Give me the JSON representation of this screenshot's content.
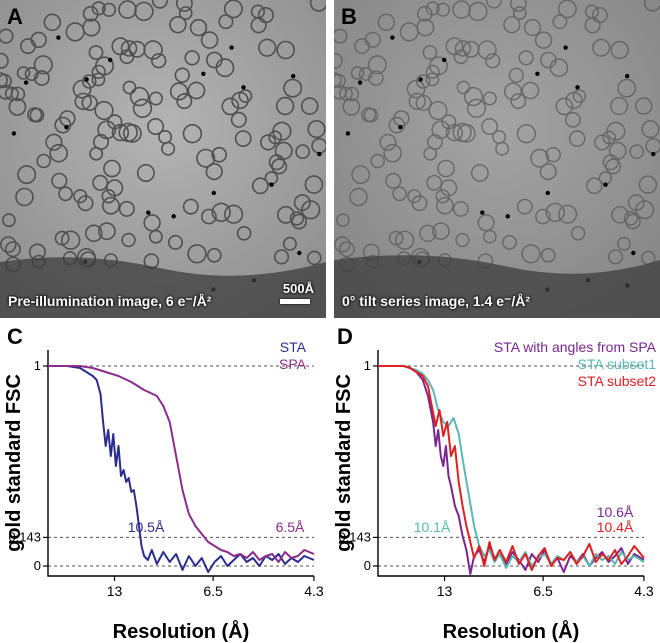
{
  "panels": {
    "A": {
      "letter": "A",
      "caption": "Pre-illumination image, 6 e⁻/Å²",
      "scale_bar": "500Å"
    },
    "B": {
      "letter": "B",
      "caption": "0° tilt series image, 1.4 e⁻/Å²"
    },
    "C": {
      "letter": "C"
    },
    "D": {
      "letter": "D"
    }
  },
  "chart_data": [
    {
      "type": "line",
      "panel": "C",
      "xlabel": "Resolution (Å)",
      "ylabel": "gold standard FSC",
      "x_ticks": [
        "13",
        "6.5",
        "4.3"
      ],
      "y_ticks": [
        "1",
        "0.143",
        "0"
      ],
      "reference_lines": [
        1,
        0.143,
        0
      ],
      "x_unit": "1/Å",
      "xlim": [
        0.025,
        0.2326
      ],
      "ylim": [
        -0.05,
        1.08
      ],
      "series": [
        {
          "name": "STA",
          "color": "#2b2d8e",
          "annotation": "10.5Å",
          "x": [
            0.025,
            0.04,
            0.05,
            0.055,
            0.06,
            0.063,
            0.066,
            0.068,
            0.07,
            0.072,
            0.074,
            0.076,
            0.078,
            0.08,
            0.082,
            0.084,
            0.086,
            0.088,
            0.09,
            0.092,
            0.094,
            0.096,
            0.098,
            0.1,
            0.103,
            0.106,
            0.11,
            0.115,
            0.12,
            0.125,
            0.13,
            0.135,
            0.14,
            0.145,
            0.15,
            0.155,
            0.16,
            0.165,
            0.17,
            0.175,
            0.18,
            0.185,
            0.19,
            0.195,
            0.2,
            0.205,
            0.21,
            0.215,
            0.22,
            0.225,
            0.2326
          ],
          "y": [
            1,
            1,
            0.99,
            0.97,
            0.95,
            0.93,
            0.86,
            0.72,
            0.6,
            0.68,
            0.55,
            0.66,
            0.5,
            0.6,
            0.45,
            0.48,
            0.42,
            0.44,
            0.37,
            0.38,
            0.3,
            0.2,
            0.1,
            0.05,
            0.03,
            0.08,
            0.01,
            0.07,
            0.02,
            0.06,
            -0.02,
            0.05,
            0.0,
            0.04,
            -0.03,
            0.02,
            0.05,
            0.0,
            0.03,
            0.06,
            0.02,
            0.04,
            0.0,
            0.05,
            0.03,
            0.06,
            0.01,
            0.04,
            0.02,
            0.05,
            0.03
          ]
        },
        {
          "name": "SPA",
          "color": "#8b2c8c",
          "annotation": "6.5Å",
          "x": [
            0.025,
            0.05,
            0.06,
            0.07,
            0.08,
            0.09,
            0.1,
            0.11,
            0.115,
            0.12,
            0.125,
            0.13,
            0.135,
            0.14,
            0.145,
            0.15,
            0.155,
            0.16,
            0.165,
            0.17,
            0.175,
            0.18,
            0.185,
            0.19,
            0.195,
            0.2,
            0.205,
            0.21,
            0.215,
            0.22,
            0.225,
            0.2326
          ],
          "y": [
            1,
            1,
            0.99,
            0.97,
            0.95,
            0.92,
            0.88,
            0.85,
            0.8,
            0.72,
            0.55,
            0.38,
            0.26,
            0.2,
            0.16,
            0.12,
            0.1,
            0.08,
            0.07,
            0.05,
            0.06,
            0.04,
            0.07,
            0.03,
            0.05,
            0.06,
            0.02,
            0.07,
            0.04,
            0.05,
            0.08,
            0.06
          ]
        }
      ]
    },
    {
      "type": "line",
      "panel": "D",
      "xlabel": "Resolution (Å)",
      "ylabel": "gold standard FSC",
      "x_ticks": [
        "13",
        "6.5",
        "4.3"
      ],
      "y_ticks": [
        "1",
        "0.143",
        "0"
      ],
      "reference_lines": [
        1,
        0.143,
        0
      ],
      "x_unit": "1/Å",
      "xlim": [
        0.025,
        0.2326
      ],
      "ylim": [
        -0.05,
        1.08
      ],
      "series": [
        {
          "name": "STA with angles from SPA",
          "color": "#7a2590",
          "annotation": "10.6Å",
          "x": [
            0.025,
            0.045,
            0.05,
            0.055,
            0.06,
            0.064,
            0.068,
            0.07,
            0.072,
            0.074,
            0.076,
            0.078,
            0.08,
            0.082,
            0.085,
            0.088,
            0.091,
            0.094,
            0.097,
            0.1,
            0.104,
            0.108,
            0.112,
            0.116,
            0.12,
            0.125,
            0.13,
            0.135,
            0.14,
            0.145,
            0.15,
            0.155,
            0.16,
            0.165,
            0.17,
            0.175,
            0.18,
            0.185,
            0.19,
            0.195,
            0.2,
            0.205,
            0.21,
            0.215,
            0.22,
            0.225,
            0.2326
          ],
          "y": [
            1,
            1,
            0.99,
            0.97,
            0.93,
            0.85,
            0.72,
            0.6,
            0.68,
            0.55,
            0.5,
            0.6,
            0.45,
            0.4,
            0.3,
            0.25,
            0.15,
            0.08,
            -0.04,
            0.05,
            0.08,
            0.02,
            0.1,
            0.04,
            0.06,
            0.01,
            0.07,
            0.03,
            -0.02,
            0.06,
            0.02,
            0.08,
            0.01,
            0.04,
            -0.03,
            0.05,
            0.02,
            0.06,
            0.0,
            0.04,
            0.07,
            0.02,
            0.05,
            0.09,
            0.01,
            0.06,
            0.03
          ]
        },
        {
          "name": "STA subset1",
          "color": "#5ab8b4",
          "annotation": "10.1Å",
          "x": [
            0.025,
            0.045,
            0.05,
            0.055,
            0.06,
            0.064,
            0.068,
            0.072,
            0.076,
            0.08,
            0.084,
            0.088,
            0.092,
            0.096,
            0.1,
            0.104,
            0.108,
            0.112,
            0.116,
            0.12,
            0.125,
            0.13,
            0.135,
            0.14,
            0.145,
            0.15,
            0.155,
            0.16,
            0.165,
            0.17,
            0.175,
            0.18,
            0.185,
            0.19,
            0.195,
            0.2,
            0.205,
            0.21,
            0.215,
            0.22,
            0.225,
            0.2326
          ],
          "y": [
            1,
            1,
            0.99,
            0.98,
            0.96,
            0.93,
            0.88,
            0.78,
            0.72,
            0.7,
            0.74,
            0.66,
            0.5,
            0.35,
            0.2,
            0.1,
            0.05,
            0.08,
            0.02,
            0.06,
            -0.01,
            0.05,
            0.02,
            0.07,
            0.0,
            0.04,
            0.06,
            0.01,
            0.05,
            0.03,
            0.07,
            0.02,
            0.05,
            0.0,
            0.06,
            0.03,
            0.05,
            0.01,
            0.07,
            0.03,
            0.05,
            0.02
          ]
        },
        {
          "name": "STA subset2",
          "color": "#e02020",
          "annotation": "10.4Å",
          "x": [
            0.025,
            0.045,
            0.05,
            0.055,
            0.06,
            0.064,
            0.067,
            0.07,
            0.073,
            0.076,
            0.079,
            0.082,
            0.085,
            0.088,
            0.091,
            0.094,
            0.097,
            0.1,
            0.104,
            0.108,
            0.112,
            0.116,
            0.12,
            0.125,
            0.13,
            0.135,
            0.14,
            0.145,
            0.15,
            0.155,
            0.16,
            0.165,
            0.17,
            0.175,
            0.18,
            0.185,
            0.19,
            0.195,
            0.2,
            0.205,
            0.21,
            0.215,
            0.22,
            0.225,
            0.2326
          ],
          "y": [
            1,
            1,
            0.99,
            0.97,
            0.95,
            0.9,
            0.8,
            0.7,
            0.78,
            0.65,
            0.72,
            0.55,
            0.6,
            0.42,
            0.3,
            0.2,
            0.12,
            0.04,
            0.1,
            0.0,
            0.12,
            0.03,
            0.08,
            0.02,
            0.1,
            0.01,
            0.06,
            -0.02,
            0.05,
            0.09,
            0.0,
            0.04,
            0.03,
            0.07,
            0.01,
            0.05,
            0.11,
            0.02,
            0.06,
            0.03,
            0.08,
            0.01,
            0.05,
            0.1,
            0.04
          ]
        }
      ]
    }
  ]
}
